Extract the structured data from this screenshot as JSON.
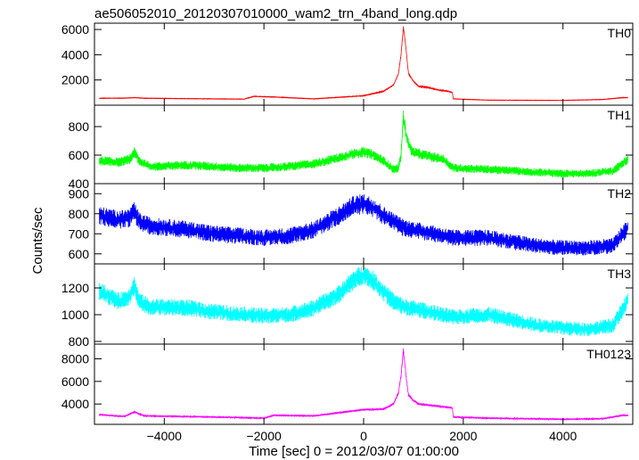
{
  "title": "ae506052010_20120307010000_wam2_trn_4band_long.qdp",
  "ylabel": "Counts/sec",
  "xlabel": "Time [sec] 0 = 2012/03/07 01:00:00",
  "chart_data": {
    "type": "line",
    "title": "ae506052010_20120307010000_wam2_trn_4band_long.qdp",
    "xlabel": "Time [sec] 0 = 2012/03/07 01:00:00",
    "ylabel": "Counts/sec",
    "xlim": [
      -5400,
      5400
    ],
    "x_ticks": [
      -4000,
      -2000,
      0,
      2000,
      4000
    ],
    "x_tick_labels": [
      "−4000",
      "−2000",
      "0",
      "2000",
      "4000"
    ],
    "legend": "none",
    "panels": [
      {
        "name": "TH0",
        "color": "#ff0000",
        "ylim": [
          0,
          6500
        ],
        "yticks": [
          2000,
          4000,
          6000
        ],
        "noise": 0.02,
        "x": [
          -5300,
          -4800,
          -4600,
          -4400,
          -3000,
          -2400,
          -2200,
          -1800,
          -1000,
          0,
          400,
          600,
          700,
          750,
          800,
          850,
          900,
          1000,
          1100,
          1300,
          1500,
          1700,
          1780,
          1800,
          2500,
          4000,
          4800,
          5200
        ],
        "y": [
          550,
          560,
          600,
          550,
          500,
          480,
          700,
          650,
          500,
          750,
          1100,
          1600,
          2500,
          4000,
          6200,
          4500,
          2500,
          1900,
          1500,
          1400,
          1200,
          1100,
          1000,
          500,
          400,
          380,
          450,
          600
        ]
      },
      {
        "name": "TH1",
        "color": "#00ff00",
        "ylim": [
          400,
          950
        ],
        "yticks": [
          400,
          600,
          800
        ],
        "noise": 0.05,
        "x": [
          -5300,
          -4900,
          -4700,
          -4600,
          -4500,
          -4300,
          -3500,
          -3000,
          -2500,
          -2000,
          -1500,
          -1000,
          -500,
          -200,
          0,
          200,
          400,
          600,
          700,
          750,
          800,
          850,
          900,
          950,
          1000,
          1200,
          1600,
          1800,
          2500,
          3000,
          3500,
          4000,
          4500,
          5000,
          5300
        ],
        "y": [
          560,
          550,
          570,
          620,
          560,
          520,
          530,
          520,
          510,
          510,
          520,
          540,
          580,
          610,
          620,
          600,
          560,
          500,
          510,
          600,
          870,
          750,
          680,
          640,
          620,
          600,
          570,
          510,
          500,
          490,
          480,
          470,
          470,
          490,
          570
        ]
      },
      {
        "name": "TH2",
        "color": "#0000ff",
        "ylim": [
          550,
          950
        ],
        "yticks": [
          600,
          700,
          800,
          900
        ],
        "noise": 0.05,
        "x": [
          -5300,
          -4900,
          -4700,
          -4600,
          -4500,
          -4300,
          -3500,
          -3000,
          -2000,
          -1500,
          -1000,
          -500,
          -200,
          0,
          200,
          400,
          600,
          800,
          1200,
          1800,
          2500,
          3000,
          3500,
          4000,
          4500,
          5000,
          5300
        ],
        "y": [
          790,
          770,
          780,
          810,
          760,
          740,
          720,
          700,
          680,
          690,
          720,
          790,
          840,
          850,
          830,
          790,
          760,
          730,
          710,
          680,
          680,
          660,
          640,
          630,
          630,
          640,
          730
        ]
      },
      {
        "name": "TH3",
        "color": "#00ffff",
        "ylim": [
          780,
          1380
        ],
        "yticks": [
          800,
          1000,
          1200
        ],
        "noise": 0.05,
        "x": [
          -5300,
          -4900,
          -4700,
          -4600,
          -4500,
          -4300,
          -3500,
          -3000,
          -2000,
          -1500,
          -1000,
          -500,
          -200,
          0,
          200,
          400,
          600,
          800,
          1200,
          1800,
          2500,
          3000,
          3500,
          4000,
          4500,
          5000,
          5300
        ],
        "y": [
          1170,
          1100,
          1140,
          1220,
          1100,
          1060,
          1050,
          1020,
          990,
          1000,
          1050,
          1150,
          1260,
          1300,
          1250,
          1170,
          1100,
          1060,
          1030,
          980,
          1000,
          960,
          920,
          900,
          890,
          920,
          1100
        ]
      },
      {
        "name": "TH0123",
        "color": "#ff00ff",
        "ylim": [
          2200,
          9300
        ],
        "yticks": [
          4000,
          6000,
          8000
        ],
        "noise": 0.025,
        "x": [
          -5300,
          -4800,
          -4600,
          -4400,
          -3000,
          -2000,
          -1800,
          -1000,
          0,
          400,
          600,
          700,
          750,
          800,
          850,
          900,
          1000,
          1100,
          1300,
          1500,
          1700,
          1780,
          1800,
          2500,
          4000,
          4800,
          5200
        ],
        "y": [
          3050,
          2900,
          3300,
          2950,
          2850,
          2750,
          3000,
          2950,
          3500,
          3550,
          4000,
          5000,
          6500,
          8800,
          6500,
          4800,
          4300,
          4000,
          3900,
          3800,
          3700,
          3650,
          2850,
          2750,
          2650,
          2700,
          3000
        ]
      }
    ]
  }
}
